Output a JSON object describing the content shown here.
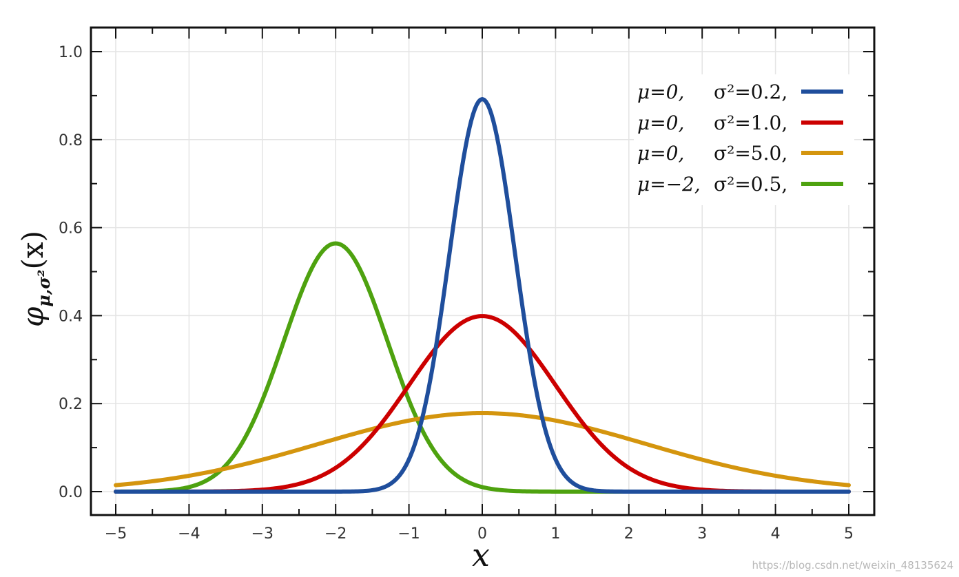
{
  "chart_data": {
    "type": "line",
    "xlabel": "x",
    "ylabel": {
      "symbol": "φ",
      "subscript": "μ,σ²",
      "arg": "(x)"
    },
    "xlim": [
      -5,
      5
    ],
    "ylim": [
      0,
      1.0
    ],
    "x_ticks": [
      "−5",
      "−4",
      "−3",
      "−2",
      "−1",
      "0",
      "1",
      "2",
      "3",
      "4",
      "5"
    ],
    "y_ticks": [
      "0.0",
      "0.2",
      "0.4",
      "0.6",
      "0.8",
      "1.0"
    ],
    "grid": true,
    "legend_position": "top-right",
    "series": [
      {
        "name": "μ=0, σ²=0.2,",
        "mu_label": "μ=0,",
        "sigma_label": "σ²=0.2,",
        "mu": 0,
        "variance": 0.2,
        "color": "#1f4e9c"
      },
      {
        "name": "μ=0, σ²=1.0,",
        "mu_label": "μ=0,",
        "sigma_label": "σ²=1.0,",
        "mu": 0,
        "variance": 1.0,
        "color": "#cc0000"
      },
      {
        "name": "μ=0, σ²=5.0,",
        "mu_label": "μ=0,",
        "sigma_label": "σ²=5.0,",
        "mu": 0,
        "variance": 5.0,
        "color": "#d4950e"
      },
      {
        "name": "μ=−2, σ²=0.5,",
        "mu_label": "μ=−2,",
        "sigma_label": "σ²=0.5,",
        "mu": -2,
        "variance": 0.5,
        "color": "#4ea20f"
      }
    ],
    "peaks": [
      {
        "x": 0,
        "y": 0.892
      },
      {
        "x": 0,
        "y": 0.399
      },
      {
        "x": 0,
        "y": 0.178
      },
      {
        "x": -2,
        "y": 0.564
      }
    ]
  },
  "watermark": "https://blog.csdn.net/weixin_48135624"
}
